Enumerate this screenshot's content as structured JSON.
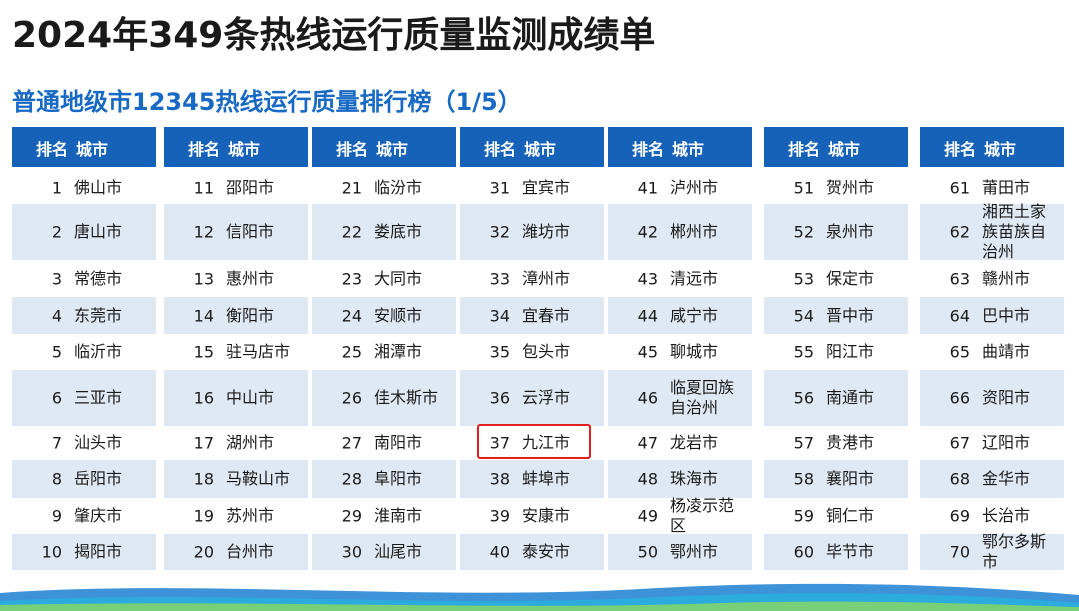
{
  "title": "2024年349条热线运行质量监测成绩单",
  "subtitle": "普通地级市12345热线运行质量排行榜（1/5）",
  "header": {
    "rank": "排名",
    "city": "城市"
  },
  "columns": [
    [
      [
        "1",
        "佛山市"
      ],
      [
        "2",
        "唐山市"
      ],
      [
        "3",
        "常德市"
      ],
      [
        "4",
        "东莞市"
      ],
      [
        "5",
        "临沂市"
      ],
      [
        "6",
        "三亚市"
      ],
      [
        "7",
        "汕头市"
      ],
      [
        "8",
        "岳阳市"
      ],
      [
        "9",
        "肇庆市"
      ],
      [
        "10",
        "揭阳市"
      ]
    ],
    [
      [
        "11",
        "邵阳市"
      ],
      [
        "12",
        "信阳市"
      ],
      [
        "13",
        "惠州市"
      ],
      [
        "14",
        "衡阳市"
      ],
      [
        "15",
        "驻马店市"
      ],
      [
        "16",
        "中山市"
      ],
      [
        "17",
        "湖州市"
      ],
      [
        "18",
        "马鞍山市"
      ],
      [
        "19",
        "苏州市"
      ],
      [
        "20",
        "台州市"
      ]
    ],
    [
      [
        "21",
        "临汾市"
      ],
      [
        "22",
        "娄底市"
      ],
      [
        "23",
        "大同市"
      ],
      [
        "24",
        "安顺市"
      ],
      [
        "25",
        "湘潭市"
      ],
      [
        "26",
        "佳木斯市"
      ],
      [
        "27",
        "南阳市"
      ],
      [
        "28",
        "阜阳市"
      ],
      [
        "29",
        "淮南市"
      ],
      [
        "30",
        "汕尾市"
      ]
    ],
    [
      [
        "31",
        "宜宾市"
      ],
      [
        "32",
        "潍坊市"
      ],
      [
        "33",
        "漳州市"
      ],
      [
        "34",
        "宜春市"
      ],
      [
        "35",
        "包头市"
      ],
      [
        "36",
        "云浮市"
      ],
      [
        "37",
        "九江市"
      ],
      [
        "38",
        "蚌埠市"
      ],
      [
        "39",
        "安康市"
      ],
      [
        "40",
        "泰安市"
      ]
    ],
    [
      [
        "41",
        "泸州市"
      ],
      [
        "42",
        "郴州市"
      ],
      [
        "43",
        "清远市"
      ],
      [
        "44",
        "咸宁市"
      ],
      [
        "45",
        "聊城市"
      ],
      [
        "46",
        "临夏回族自治州"
      ],
      [
        "47",
        "龙岩市"
      ],
      [
        "48",
        "珠海市"
      ],
      [
        "49",
        "杨凌示范区"
      ],
      [
        "50",
        "鄂州市"
      ]
    ],
    [
      [
        "51",
        "贺州市"
      ],
      [
        "52",
        "泉州市"
      ],
      [
        "53",
        "保定市"
      ],
      [
        "54",
        "晋中市"
      ],
      [
        "55",
        "阳江市"
      ],
      [
        "56",
        "南通市"
      ],
      [
        "57",
        "贵港市"
      ],
      [
        "58",
        "襄阳市"
      ],
      [
        "59",
        "铜仁市"
      ],
      [
        "60",
        "毕节市"
      ]
    ],
    [
      [
        "61",
        "莆田市"
      ],
      [
        "62",
        "湘西土家族苗族自治州"
      ],
      [
        "63",
        "赣州市"
      ],
      [
        "64",
        "巴中市"
      ],
      [
        "65",
        "曲靖市"
      ],
      [
        "66",
        "资阳市"
      ],
      [
        "67",
        "辽阳市"
      ],
      [
        "68",
        "金华市"
      ],
      [
        "69",
        "长治市"
      ],
      [
        "70",
        "鄂尔多斯市"
      ]
    ]
  ],
  "highlighted_city": "九江市",
  "colors": {
    "header_bg": "#1662b8",
    "subtitle": "#1869c4",
    "alt_row": "#dfe9f3",
    "highlight": "#e0201e"
  }
}
